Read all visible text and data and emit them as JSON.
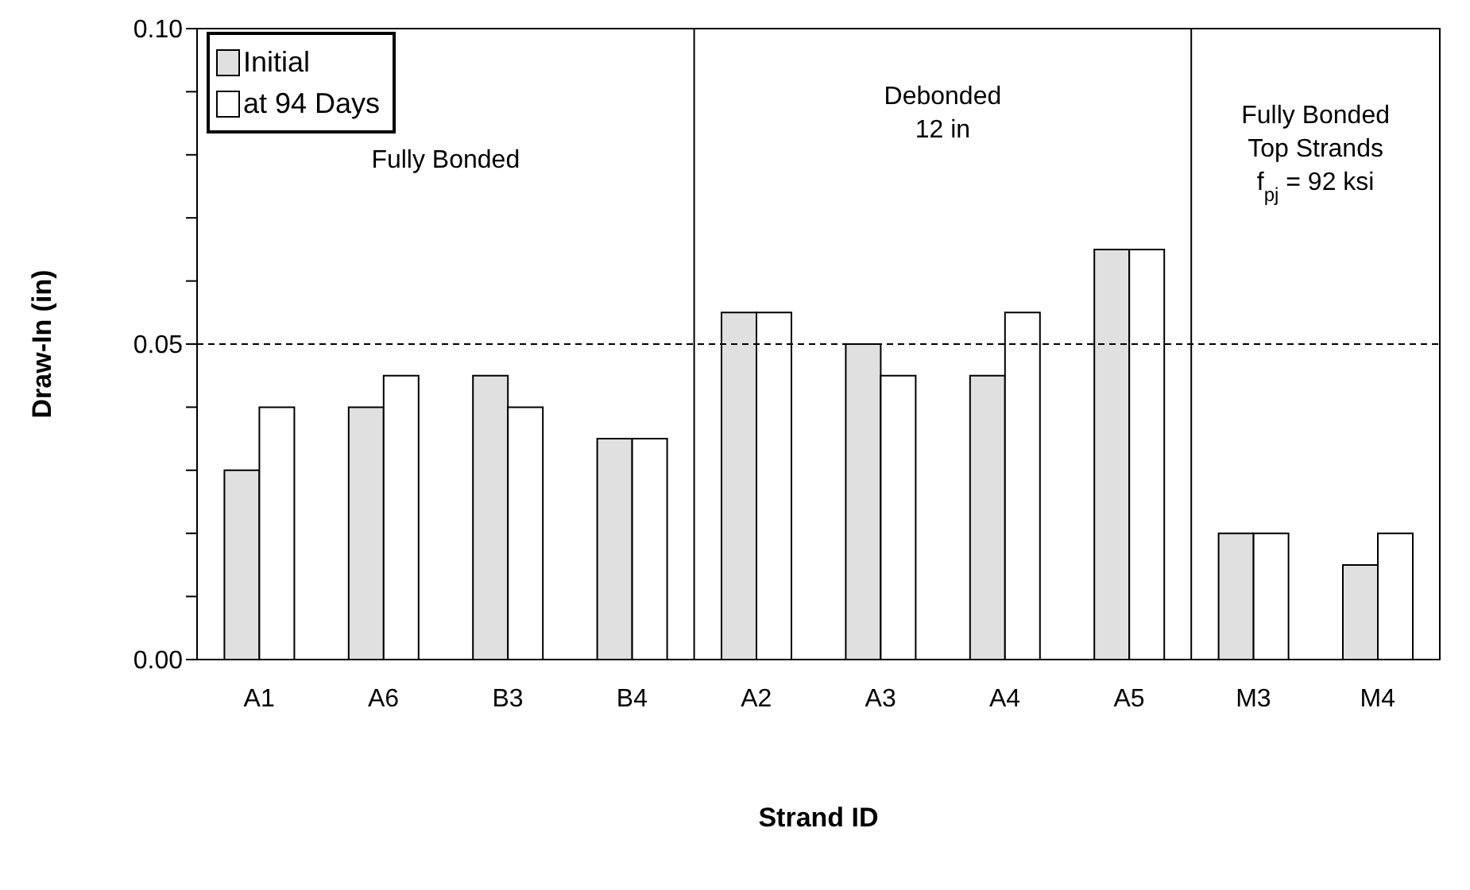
{
  "chart_data": {
    "type": "bar",
    "categories": [
      "A1",
      "A6",
      "B3",
      "B4",
      "A2",
      "A3",
      "A4",
      "A5",
      "M3",
      "M4"
    ],
    "series": [
      {
        "name": "Initial",
        "color": "#e0e0e0",
        "values": [
          0.03,
          0.04,
          0.045,
          0.035,
          0.055,
          0.05,
          0.045,
          0.065,
          0.02,
          0.015
        ]
      },
      {
        "name": "at 94 Days",
        "color": "#ffffff",
        "values": [
          0.04,
          0.045,
          0.04,
          0.035,
          0.055,
          0.045,
          0.055,
          0.065,
          0.02,
          0.02
        ]
      }
    ],
    "xlabel": "Strand ID",
    "ylabel": "Draw-In (in)",
    "ylim": [
      0,
      0.1
    ],
    "yticks": [
      {
        "value": 0,
        "label": "0.00"
      },
      {
        "value": 0.01,
        "label": null
      },
      {
        "value": 0.02,
        "label": null
      },
      {
        "value": 0.03,
        "label": null
      },
      {
        "value": 0.04,
        "label": null
      },
      {
        "value": 0.05,
        "label": "0.05"
      },
      {
        "value": 0.06,
        "label": null
      },
      {
        "value": 0.07,
        "label": null
      },
      {
        "value": 0.08,
        "label": null
      },
      {
        "value": 0.09,
        "label": null
      },
      {
        "value": 0.1,
        "label": "0.10"
      }
    ],
    "ref_lines": [
      {
        "axis": "y",
        "value": 0.05,
        "color": "#000000",
        "line_style": "dashed"
      }
    ],
    "annotations": [
      "Fully Bonded",
      "Debonded\n12 in",
      "Fully Bonded\nTop Strands\nf$_{pj}$ = 92 ksi"
    ],
    "grid": false,
    "legend": "top left"
  }
}
